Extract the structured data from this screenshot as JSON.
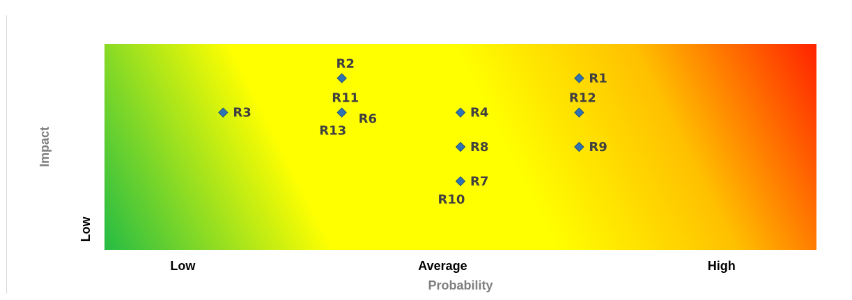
{
  "chart_data": {
    "type": "scatter",
    "title": "",
    "xlabel": "Probability",
    "ylabel": "Impact",
    "xlim": [
      0,
      6
    ],
    "ylim": [
      0,
      6
    ],
    "x_ticks": [
      {
        "value": 0.66,
        "label": "Low"
      },
      {
        "value": 2.85,
        "label": "Average"
      },
      {
        "value": 5.2,
        "label": "High"
      }
    ],
    "y_ticks": [
      {
        "value": 0.6,
        "label": "Low"
      }
    ],
    "marker_color": "#2e74b5",
    "background_gradient": [
      "#00b050",
      "#ffff00",
      "#ffff00",
      "#ffc000",
      "#ff0000"
    ],
    "points": [
      {
        "label": "R1",
        "x": 4,
        "y": 5,
        "label_pos": "right"
      },
      {
        "label": "R2",
        "x": 2,
        "y": 5,
        "label_pos": "above"
      },
      {
        "label": "R3",
        "x": 1,
        "y": 4,
        "label_pos": "right"
      },
      {
        "label": "R4",
        "x": 3,
        "y": 4,
        "label_pos": "right"
      },
      {
        "label": "R6",
        "x": 2,
        "y": 4,
        "label_pos": "right-low"
      },
      {
        "label": "R7",
        "x": 3,
        "y": 2,
        "label_pos": "right"
      },
      {
        "label": "R8",
        "x": 3,
        "y": 3,
        "label_pos": "right"
      },
      {
        "label": "R9",
        "x": 4,
        "y": 3,
        "label_pos": "right"
      },
      {
        "label": "R10",
        "x": 3,
        "y": 2,
        "label_pos": "below"
      },
      {
        "label": "R11",
        "x": 2,
        "y": 4,
        "label_pos": "above"
      },
      {
        "label": "R12",
        "x": 4,
        "y": 4,
        "label_pos": "above"
      },
      {
        "label": "R13",
        "x": 2,
        "y": 4,
        "label_pos": "below"
      }
    ]
  }
}
